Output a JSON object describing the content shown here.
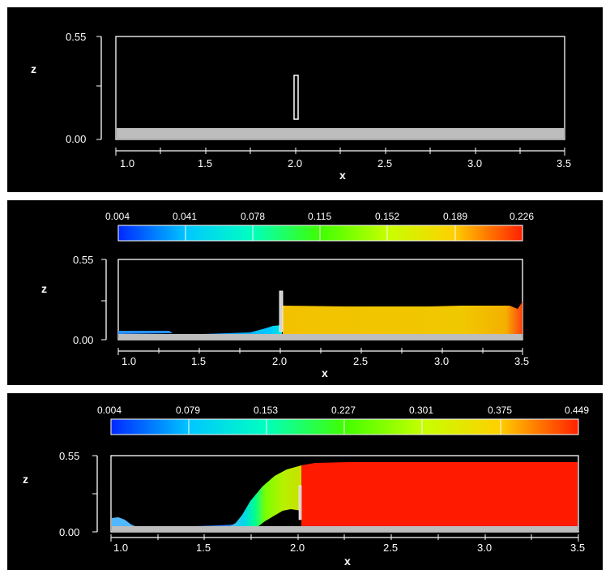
{
  "panels": [
    {
      "z_top": "0.55",
      "z_bottom": "0.00",
      "z_label": "z",
      "x_ticks": [
        "1.0",
        "1.5",
        "2.0",
        "2.5",
        "3.0",
        "3.5"
      ],
      "x_label": "x"
    },
    {
      "colorbar": {
        "labels": [
          "0.004",
          "0.041",
          "0.078",
          "0.115",
          "0.152",
          "0.189",
          "0.226"
        ],
        "colors": [
          "#0028ff",
          "#00c8ff",
          "#00ffc0",
          "#40ff00",
          "#c8ff00",
          "#ffd000",
          "#ff2000"
        ]
      },
      "z_top": "0.55",
      "z_bottom": "0.00",
      "z_label": "z",
      "x_ticks": [
        "1.0",
        "1.5",
        "2.0",
        "2.5",
        "3.0",
        "3.5"
      ],
      "x_label": "x"
    },
    {
      "colorbar": {
        "labels": [
          "0.004",
          "0.079",
          "0.153",
          "0.227",
          "0.301",
          "0.375",
          "0.449"
        ],
        "colors": [
          "#0028ff",
          "#00c8ff",
          "#00ffc0",
          "#40ff00",
          "#c8ff00",
          "#ffd000",
          "#ff2000"
        ]
      },
      "z_top": "0.55",
      "z_bottom": "0.00",
      "z_label": "z",
      "x_ticks": [
        "1.0",
        "1.5",
        "2.0",
        "2.5",
        "3.0",
        "3.5"
      ],
      "x_label": "x"
    }
  ]
}
